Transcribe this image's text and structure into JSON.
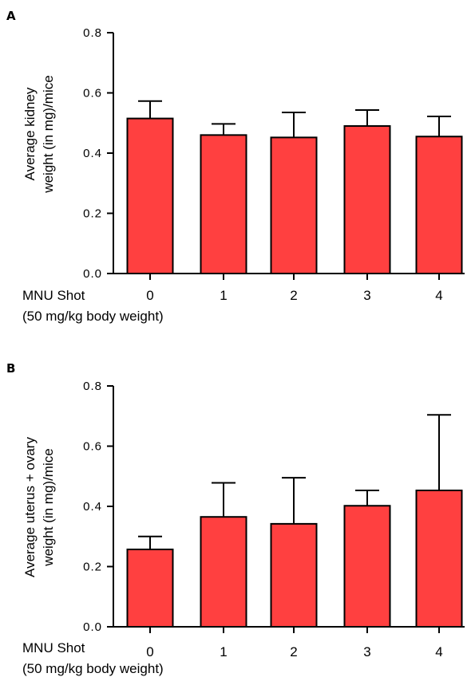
{
  "chart_data": [
    {
      "type": "bar",
      "panel_label": "A",
      "categories": [
        "0",
        "1",
        "2",
        "3",
        "4"
      ],
      "values": [
        0.515,
        0.46,
        0.452,
        0.49,
        0.455
      ],
      "error": [
        0.058,
        0.037,
        0.083,
        0.053,
        0.067
      ],
      "ylabel_lines": [
        "Average kidney",
        "weight (in mg)/mice"
      ],
      "xlabel_lines": [
        "MNU Shot",
        "(50 mg/kg body weight)"
      ],
      "ylim": [
        0,
        0.8
      ],
      "yticks": [
        "0.0",
        "0.2",
        "0.4",
        "0.6",
        "0.8"
      ],
      "bar_color": "#ff4040",
      "grid": false,
      "legend": "none"
    },
    {
      "type": "bar",
      "panel_label": "B",
      "categories": [
        "0",
        "1",
        "2",
        "3",
        "4"
      ],
      "values": [
        0.257,
        0.365,
        0.342,
        0.402,
        0.453
      ],
      "error": [
        0.043,
        0.113,
        0.153,
        0.051,
        0.251
      ],
      "ylabel_lines": [
        "Average uterus + ovary",
        "weight (in mg)/mice"
      ],
      "xlabel_lines": [
        "MNU Shot",
        "(50 mg/kg body weight)"
      ],
      "ylim": [
        0,
        0.8
      ],
      "yticks": [
        "0.0",
        "0.2",
        "0.4",
        "0.6",
        "0.8"
      ],
      "bar_color": "#ff4040",
      "grid": false,
      "legend": "none"
    }
  ]
}
